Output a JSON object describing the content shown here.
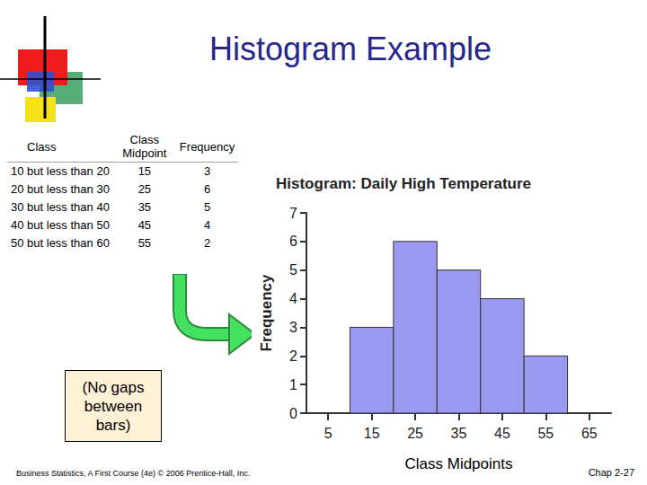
{
  "chart_data": {
    "type": "histogram",
    "title": "Histogram: Daily High Temperature",
    "x_label": "Class Midpoints",
    "y_label": "Frequency",
    "bins": [
      10,
      20,
      30,
      40,
      50,
      60
    ],
    "values": [
      3,
      6,
      5,
      4,
      2
    ],
    "color": "#9999f2",
    "xlim": [
      0,
      70
    ],
    "xticks": [
      5,
      15,
      25,
      35,
      45,
      55,
      65
    ],
    "ylim": [
      0,
      7
    ],
    "yticks": [
      0,
      1,
      2,
      3,
      4,
      5,
      6,
      7
    ],
    "grid": false
  },
  "slide": {
    "title": "Histogram Example",
    "table": {
      "header": [
        "Class",
        "Class Midpoint",
        "Frequency"
      ],
      "rows": [
        [
          "10 but less than 20",
          15,
          3
        ],
        [
          "20 but less than 30",
          25,
          6
        ],
        [
          "30 but less than 40",
          35,
          5
        ],
        [
          "40 but less than 50",
          45,
          4
        ],
        [
          "50 but less than 60",
          55,
          2
        ]
      ]
    },
    "note": "(No gaps between bars)",
    "footer": {
      "left": "Business Statistics, A First Course (4e) © 2006 Prentice-Hall, Inc.",
      "right": "Chap 2-27"
    }
  }
}
